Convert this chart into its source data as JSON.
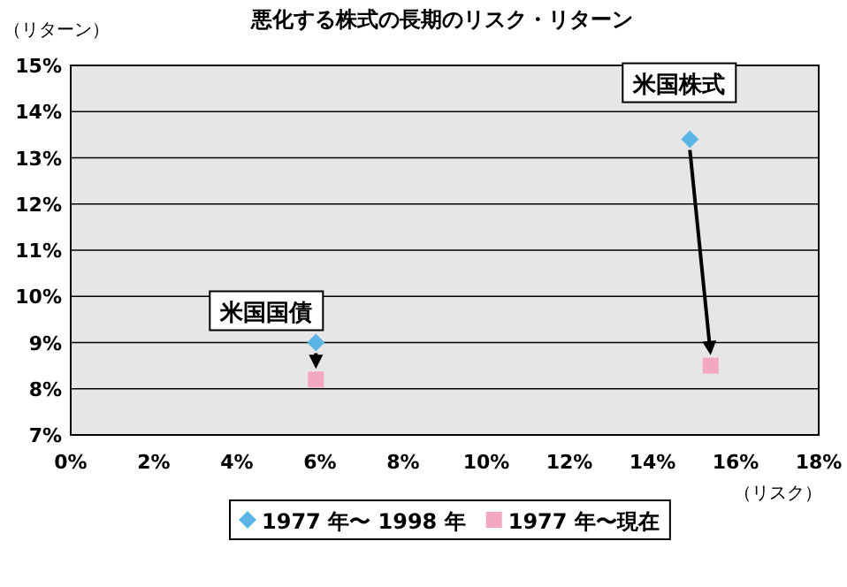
{
  "chart_data": {
    "type": "scatter",
    "title": "悪化する株式の長期のリスク・リターン",
    "xlabel": "（リスク）",
    "ylabel": "（リターン）",
    "xlim": [
      0,
      18
    ],
    "xticks": [
      {
        "value": 0,
        "label": "0%"
      },
      {
        "value": 2,
        "label": "2%"
      },
      {
        "value": 4,
        "label": "4%"
      },
      {
        "value": 6,
        "label": "6%"
      },
      {
        "value": 8,
        "label": "8%"
      },
      {
        "value": 10,
        "label": "10%"
      },
      {
        "value": 12,
        "label": "12%"
      },
      {
        "value": 14,
        "label": "14%"
      },
      {
        "value": 16,
        "label": "16%"
      },
      {
        "value": 18,
        "label": "18%"
      }
    ],
    "ylim": [
      7,
      15
    ],
    "yticks": [
      {
        "value": 7,
        "label": "7%"
      },
      {
        "value": 8,
        "label": "8%"
      },
      {
        "value": 9,
        "label": "9%"
      },
      {
        "value": 10,
        "label": "10%"
      },
      {
        "value": 11,
        "label": "11%"
      },
      {
        "value": 12,
        "label": "12%"
      },
      {
        "value": 13,
        "label": "13%"
      },
      {
        "value": 14,
        "label": "14%"
      },
      {
        "value": 15,
        "label": "15%"
      }
    ],
    "grid": "y",
    "legend": "bottom",
    "series": [
      {
        "name": "1977 年〜 1998 年",
        "color": "#5ab4e6",
        "marker": "diamond",
        "x": [
          5.9,
          14.9
        ],
        "values": [
          9.0,
          13.4
        ]
      },
      {
        "name": "1977 年〜現在",
        "color": "#f4a7c1",
        "marker": "square",
        "x": [
          5.9,
          15.4
        ],
        "values": [
          8.2,
          8.5
        ]
      }
    ],
    "annotations": [
      {
        "text": "米国国債",
        "x": 5.9,
        "y": 9.0
      },
      {
        "text": "米国株式",
        "x": 14.9,
        "y": 13.4
      }
    ]
  }
}
